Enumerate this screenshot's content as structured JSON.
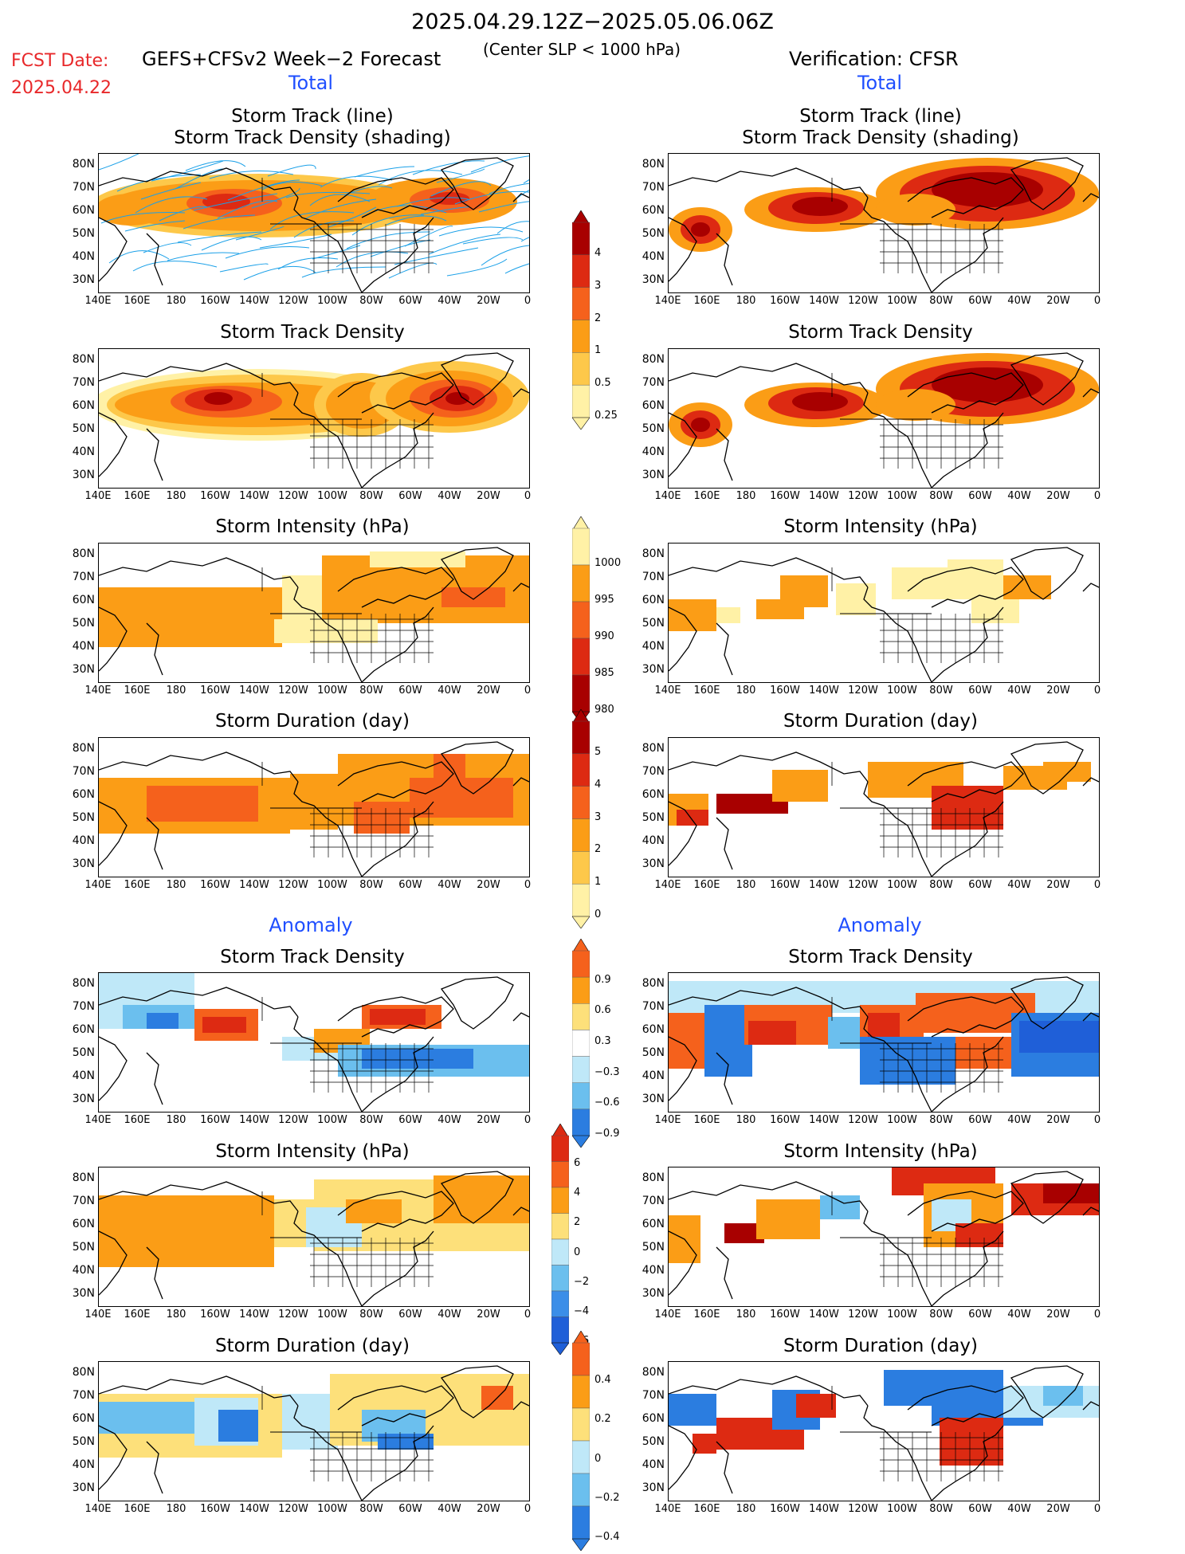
{
  "header": {
    "title": "2025.04.29.12Z−2025.05.06.06Z",
    "fcst_line1": "FCST Date:",
    "fcst_line2": "2025.04.22",
    "model": "GEFS+CFSv2 Week−2 Forecast",
    "model_sub": "(Center SLP < 1000 hPa)",
    "verification": "Verification: CFSR"
  },
  "sections": {
    "total": "Total",
    "anomaly": "Anomaly"
  },
  "panel_titles": {
    "track_line": "Storm Track (line)",
    "track_shading": "Storm Track Density (shading)",
    "density": "Storm Track Density",
    "intensity": "Storm Intensity (hPa)",
    "duration": "Storm Duration (day)"
  },
  "axes": {
    "lat_labels": [
      "80N",
      "70N",
      "60N",
      "50N",
      "40N",
      "30N"
    ],
    "lon_labels": [
      "140E",
      "160E",
      "180",
      "160W",
      "140W",
      "120W",
      "100W",
      "80W",
      "60W",
      "40W",
      "20W",
      "0"
    ]
  },
  "colorbars": [
    {
      "id": "density_total",
      "labels": [
        "4",
        "3",
        "2",
        "1",
        "0.5",
        "0.25"
      ],
      "colors": [
        "#a80000",
        "#dd2a12",
        "#f5611c",
        "#fb9d16",
        "#fdc84a",
        "#fff1a6"
      ]
    },
    {
      "id": "intensity_total",
      "labels": [
        "1000",
        "995",
        "990",
        "985",
        "980"
      ],
      "colors": [
        "#fff1a6",
        "#fb9d16",
        "#f5611c",
        "#dd2a12",
        "#a80000"
      ]
    },
    {
      "id": "duration_total",
      "labels": [
        "5",
        "4",
        "3",
        "2",
        "1",
        "0"
      ],
      "colors": [
        "#a80000",
        "#dd2a12",
        "#f5611c",
        "#fb9d16",
        "#fdc84a",
        "#fff1a6"
      ]
    },
    {
      "id": "density_anom",
      "labels": [
        "0.9",
        "0.6",
        "0.3",
        "−0.3",
        "−0.6",
        "−0.9"
      ],
      "colors": [
        "#f5611c",
        "#fb9d16",
        "#fde07a",
        "#ffffff",
        "#bfe8f8",
        "#6bbfee",
        "#2b7de0"
      ]
    },
    {
      "id": "intensity_anom",
      "labels": [
        "6",
        "4",
        "2",
        "0",
        "−2",
        "−4",
        "−6"
      ],
      "colors": [
        "#dd2a12",
        "#f5611c",
        "#fb9d16",
        "#fde07a",
        "#bfe8f8",
        "#6bbfee",
        "#3b8ee8",
        "#1f5fd8"
      ]
    },
    {
      "id": "duration_anom",
      "labels": [
        "0.4",
        "0.2",
        "0",
        "−0.2",
        "−0.4"
      ],
      "colors": [
        "#f5611c",
        "#fb9d16",
        "#fde07a",
        "#bfe8f8",
        "#6bbfee",
        "#2b7de0"
      ]
    }
  ]
}
